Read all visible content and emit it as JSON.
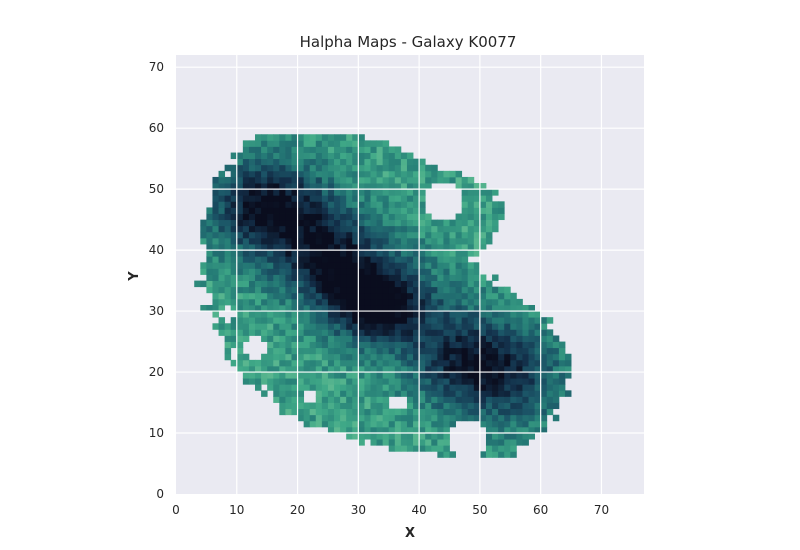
{
  "chart_data": {
    "type": "heatmap",
    "title": "Halpha Maps - Galaxy K0077",
    "xlabel": "X",
    "ylabel": "Y",
    "xlim": [
      0,
      77
    ],
    "ylim": [
      0,
      72
    ],
    "xticks": [
      0,
      10,
      20,
      30,
      40,
      50,
      60,
      70
    ],
    "yticks": [
      0,
      10,
      20,
      30,
      40,
      50,
      60,
      70
    ],
    "grid": true,
    "colormap": [
      "#f2f19e",
      "#8fd3a0",
      "#3fa887",
      "#267e77",
      "#1b5567",
      "#13304a",
      "#0a0d1e"
    ],
    "plot_background": "#eaeaf2",
    "grid_color": "#ffffff",
    "valid_region": [
      {
        "y": 6,
        "x_min": 46,
        "x_max": 55
      },
      {
        "y": 8,
        "x_min": 32,
        "x_max": 57
      },
      {
        "y": 10,
        "x_min": 26,
        "x_max": 60
      },
      {
        "y": 12,
        "x_min": 20,
        "x_max": 62
      },
      {
        "y": 15,
        "x_min": 16,
        "x_max": 64
      },
      {
        "y": 20,
        "x_min": 11,
        "x_max": 65
      },
      {
        "y": 25,
        "x_min": 8,
        "x_max": 64
      },
      {
        "y": 30,
        "x_min": 5,
        "x_max": 60
      },
      {
        "y": 34,
        "x_min": 4,
        "x_max": 54
      },
      {
        "y": 38,
        "x_min": 4,
        "x_max": 48
      },
      {
        "y": 42,
        "x_min": 4,
        "x_max": 52
      },
      {
        "y": 46,
        "x_min": 5,
        "x_max": 54
      },
      {
        "y": 50,
        "x_min": 6,
        "x_max": 52
      },
      {
        "y": 53,
        "x_min": 8,
        "x_max": 45
      },
      {
        "y": 56,
        "x_min": 10,
        "x_max": 37
      },
      {
        "y": 59,
        "x_min": 14,
        "x_max": 31
      }
    ],
    "intensity_model": {
      "base": 0.38,
      "components": [
        {
          "x": 16,
          "y": 47,
          "amplitude": 0.45,
          "sigma_x": 6.5,
          "sigma_y": 5
        },
        {
          "x": 33,
          "y": 31,
          "amplitude": 0.6,
          "sigma_x": 5,
          "sigma_y": 4
        },
        {
          "x": 26,
          "y": 38,
          "amplitude": 0.38,
          "sigma_x": 6,
          "sigma_y": 5
        },
        {
          "x": 50,
          "y": 21,
          "amplitude": 0.42,
          "sigma_x": 7,
          "sigma_y": 5
        }
      ],
      "band": {
        "x0": 14,
        "y0": 47,
        "x1": 56,
        "y1": 18,
        "amplitude": 0.22,
        "width": 6
      }
    },
    "holes": [
      {
        "x": 44,
        "y": 48,
        "r": 3
      },
      {
        "x": 48,
        "y": 9,
        "r": 3
      },
      {
        "x": 13,
        "y": 24,
        "r": 1.8
      },
      {
        "x": 8.5,
        "y": 29.5,
        "r": 1.2
      },
      {
        "x": 22,
        "y": 16,
        "r": 1.5
      },
      {
        "x": 36.5,
        "y": 15,
        "r": 1.2
      }
    ]
  }
}
